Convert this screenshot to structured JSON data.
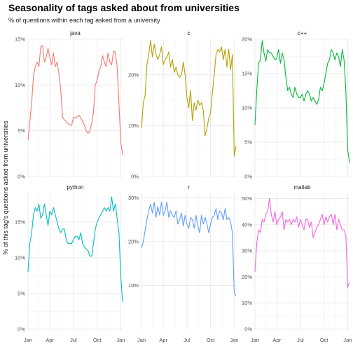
{
  "title": "Seasonality of tags asked about from universities",
  "subtitle": "% of questions within each tag asked from a university",
  "chart_data": {
    "type": "line",
    "ylabel": "% of this tag's questions asked from universities",
    "x_ticks": [
      "Jan",
      "Apr",
      "Jul",
      "Oct",
      "Jan"
    ],
    "x_tick_weeks": [
      1,
      13,
      26,
      39,
      52
    ],
    "x": [
      1,
      2,
      3,
      4,
      5,
      6,
      7,
      8,
      9,
      10,
      11,
      12,
      13,
      14,
      15,
      16,
      17,
      18,
      19,
      20,
      21,
      22,
      23,
      24,
      25,
      26,
      27,
      28,
      29,
      30,
      31,
      32,
      33,
      34,
      35,
      36,
      37,
      38,
      39,
      40,
      41,
      42,
      43,
      44,
      45,
      46,
      47,
      48,
      49,
      50,
      51,
      52,
      53
    ],
    "panels": [
      {
        "name": "java",
        "color": "#F8766D",
        "ylim": [
          0,
          15
        ],
        "y_ticks": [
          0,
          5,
          10,
          15
        ],
        "values": [
          4.0,
          6.0,
          8.0,
          11.0,
          12.0,
          12.5,
          12.0,
          14.2,
          14.3,
          12.5,
          13.0,
          14.0,
          13.0,
          12.2,
          13.5,
          12.0,
          12.5,
          11.2,
          9.5,
          6.5,
          6.2,
          6.0,
          5.8,
          5.6,
          5.6,
          6.5,
          6.4,
          6.5,
          6.7,
          6.4,
          6.0,
          5.6,
          5.0,
          4.7,
          5.0,
          5.8,
          7.0,
          10.0,
          10.5,
          11.5,
          12.0,
          13.2,
          12.5,
          12.0,
          13.5,
          12.5,
          12.2,
          13.7,
          13.6,
          12.0,
          8.0,
          3.8,
          2.4
        ]
      },
      {
        "name": "c",
        "color": "#B79F00",
        "ylim": [
          0,
          27
        ],
        "y_ticks": [
          0,
          10,
          20
        ],
        "values": [
          9.5,
          14.5,
          16.0,
          22.0,
          24.0,
          26.8,
          23.5,
          26.0,
          24.0,
          23.0,
          24.0,
          25.5,
          22.0,
          23.0,
          23.5,
          24.5,
          21.5,
          23.0,
          20.5,
          21.5,
          20.0,
          19.5,
          20.0,
          22.5,
          20.0,
          15.5,
          13.5,
          17.0,
          11.0,
          14.5,
          13.0,
          15.0,
          14.0,
          14.5,
          13.0,
          8.0,
          9.5,
          11.5,
          12.5,
          16.5,
          20.0,
          24.0,
          25.0,
          24.5,
          25.5,
          23.0,
          25.0,
          21.5,
          25.0,
          21.0,
          24.0,
          4.0,
          6.0
        ]
      },
      {
        "name": "c++",
        "color": "#00BA38",
        "ylim": [
          0,
          20
        ],
        "y_ticks": [
          0,
          5,
          10,
          15,
          20
        ],
        "values": [
          7.5,
          12.5,
          16.5,
          17.0,
          19.8,
          18.0,
          16.8,
          18.5,
          18.0,
          18.0,
          17.5,
          17.0,
          17.2,
          18.5,
          16.5,
          18.0,
          17.0,
          14.5,
          12.5,
          13.0,
          12.0,
          11.5,
          13.0,
          12.0,
          11.5,
          11.5,
          12.0,
          11.0,
          12.0,
          12.5,
          12.0,
          11.0,
          11.5,
          11.0,
          10.5,
          11.2,
          13.0,
          12.5,
          13.5,
          15.0,
          16.5,
          17.0,
          18.5,
          18.0,
          17.0,
          18.0,
          17.5,
          16.0,
          18.5,
          17.0,
          12.5,
          4.0,
          2.0
        ]
      },
      {
        "name": "python",
        "color": "#00BFC4",
        "ylim": [
          0,
          19
        ],
        "y_ticks": [
          0,
          5,
          10,
          15
        ],
        "values": [
          8.0,
          12.0,
          13.5,
          16.0,
          17.0,
          16.5,
          17.5,
          15.5,
          16.0,
          17.5,
          16.0,
          14.5,
          16.5,
          16.0,
          17.0,
          16.0,
          15.0,
          14.0,
          13.5,
          14.0,
          14.0,
          12.5,
          12.0,
          12.0,
          12.0,
          12.5,
          13.0,
          13.0,
          12.5,
          13.5,
          12.0,
          11.5,
          11.2,
          11.0,
          10.2,
          10.2,
          12.0,
          14.0,
          15.0,
          15.5,
          16.0,
          16.5,
          17.0,
          16.5,
          17.0,
          16.5,
          18.5,
          16.5,
          17.5,
          15.5,
          13.5,
          7.5,
          3.8
        ]
      },
      {
        "name": "r",
        "color": "#619CFF",
        "ylim": [
          0,
          31
        ],
        "y_ticks": [
          10,
          20,
          30
        ],
        "values": [
          18.5,
          20.0,
          22.5,
          25.0,
          27.0,
          28.5,
          26.5,
          29.0,
          25.5,
          28.0,
          26.0,
          29.0,
          26.0,
          27.0,
          29.0,
          25.5,
          27.0,
          26.0,
          25.5,
          27.0,
          24.0,
          25.0,
          26.5,
          23.5,
          26.0,
          24.0,
          23.0,
          25.5,
          25.0,
          23.0,
          26.0,
          23.5,
          22.0,
          26.0,
          24.0,
          25.5,
          24.0,
          22.0,
          24.0,
          25.5,
          26.0,
          27.5,
          25.0,
          27.0,
          26.5,
          25.0,
          27.5,
          25.0,
          25.5,
          24.5,
          22.0,
          8.5,
          7.5
        ]
      },
      {
        "name": "matlab",
        "color": "#F564E3",
        "ylim": [
          0,
          52
        ],
        "y_ticks": [
          0,
          10,
          20,
          30,
          40,
          50
        ],
        "values": [
          22.0,
          33.0,
          38.0,
          37.0,
          42.0,
          41.0,
          44.0,
          45.0,
          50.0,
          44.0,
          41.0,
          45.0,
          40.0,
          42.0,
          43.0,
          45.0,
          38.0,
          42.0,
          41.0,
          42.0,
          40.0,
          42.0,
          41.0,
          43.0,
          39.0,
          42.0,
          40.0,
          38.0,
          42.0,
          42.0,
          39.0,
          41.0,
          35.0,
          37.0,
          39.0,
          40.0,
          42.0,
          44.0,
          40.0,
          43.0,
          41.0,
          43.0,
          44.0,
          40.0,
          44.0,
          38.0,
          42.0,
          40.0,
          38.0,
          38.0,
          36.0,
          16.0,
          18.0
        ]
      }
    ]
  }
}
